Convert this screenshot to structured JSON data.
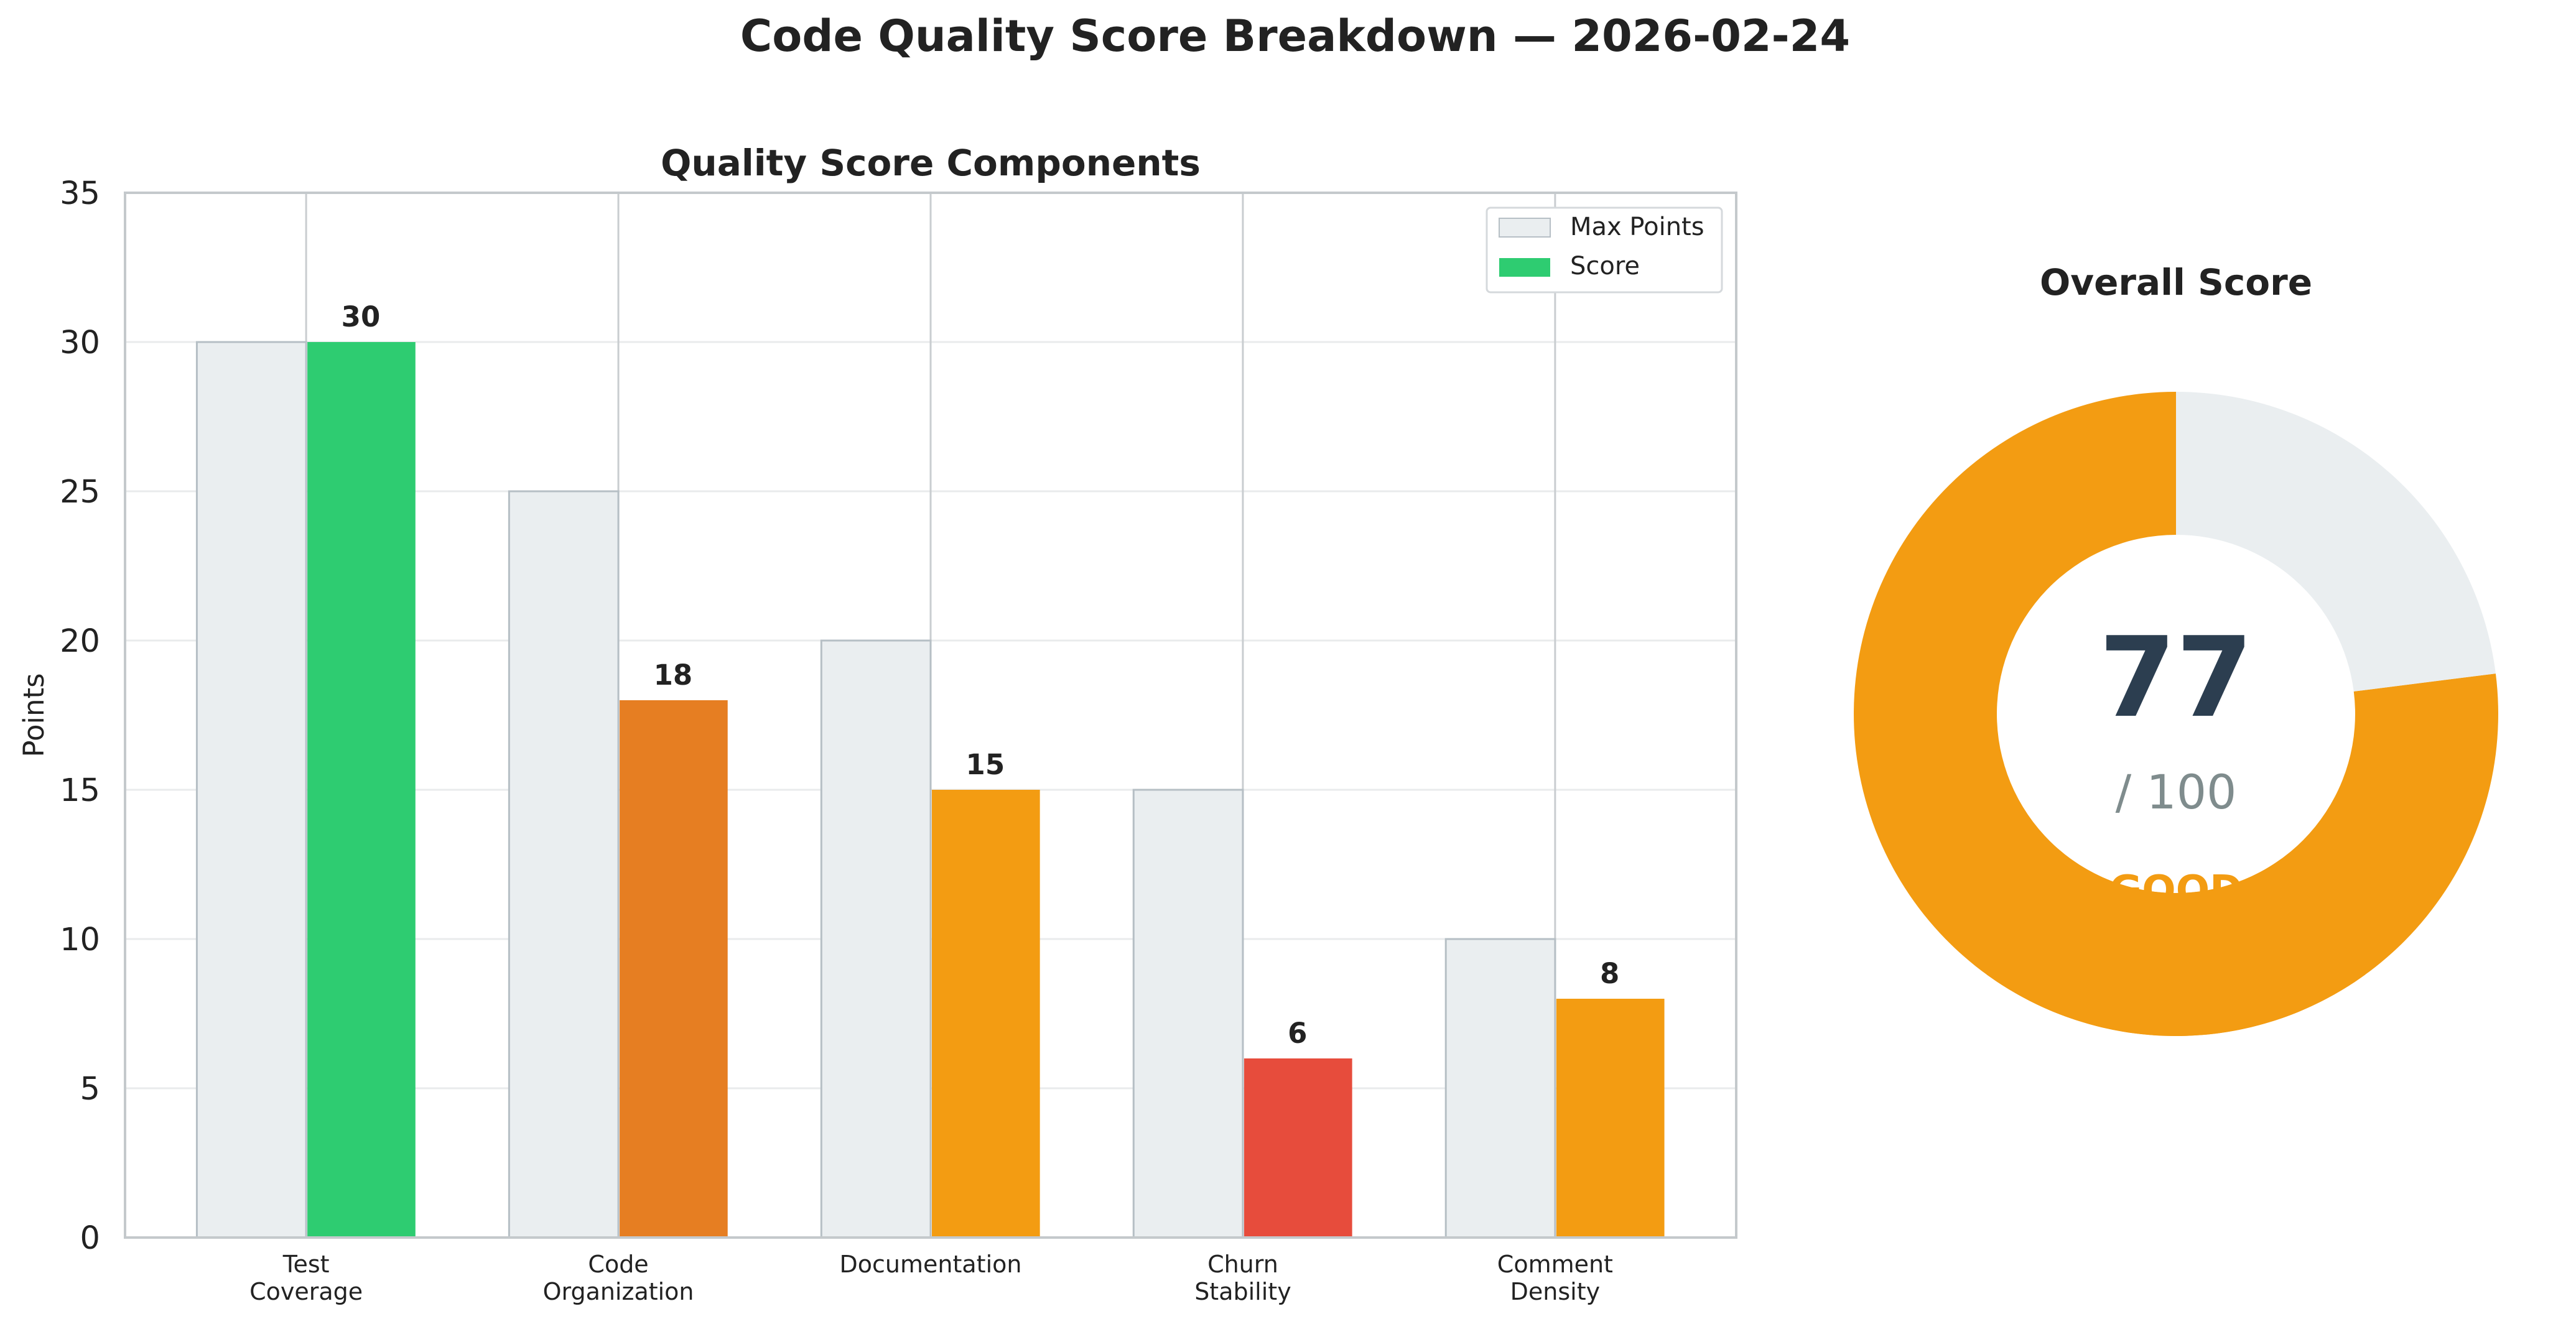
{
  "figure": {
    "title": "Code Quality Score Breakdown — 2026-02-24"
  },
  "colors": {
    "max_fill": "#eaeef0",
    "max_edge": "#b6bfc5",
    "green": "#2ecc71",
    "dark_orange": "#e67e22",
    "orange": "#f39c12",
    "red": "#e74c3c",
    "gauge_track": "#eaeef0",
    "value_text": "#2c3e50",
    "max_text": "#7f8c8d"
  },
  "chart_data": [
    {
      "type": "bar",
      "title": "Quality Score Components",
      "xlabel": "",
      "ylabel": "Points",
      "ylim": [
        0,
        35
      ],
      "yticks": [
        0,
        5,
        10,
        15,
        20,
        25,
        30,
        35
      ],
      "grid": "horizontal",
      "categories": [
        "Test\nCoverage",
        "Code\nOrganization",
        "Documentation",
        "Churn\nStability",
        "Comment\nDensity"
      ],
      "series": [
        {
          "name": "Max Points",
          "values": [
            30,
            25,
            20,
            15,
            10
          ],
          "color": "#eaeef0"
        },
        {
          "name": "Score",
          "values": [
            30,
            18,
            15,
            6,
            8
          ],
          "colors": [
            "#2ecc71",
            "#e67e22",
            "#f39c12",
            "#e74c3c",
            "#f39c12"
          ],
          "legend_color": "#2ecc71"
        }
      ],
      "legend": {
        "placement": "top-right"
      }
    },
    {
      "type": "pie",
      "title": "Overall Score",
      "value": 77,
      "max_label": "/ 100",
      "rating": "GOOD",
      "slices": [
        {
          "value": 77,
          "color": "#f39c12"
        },
        {
          "value": 23,
          "color": "#eaeef0"
        }
      ]
    }
  ]
}
